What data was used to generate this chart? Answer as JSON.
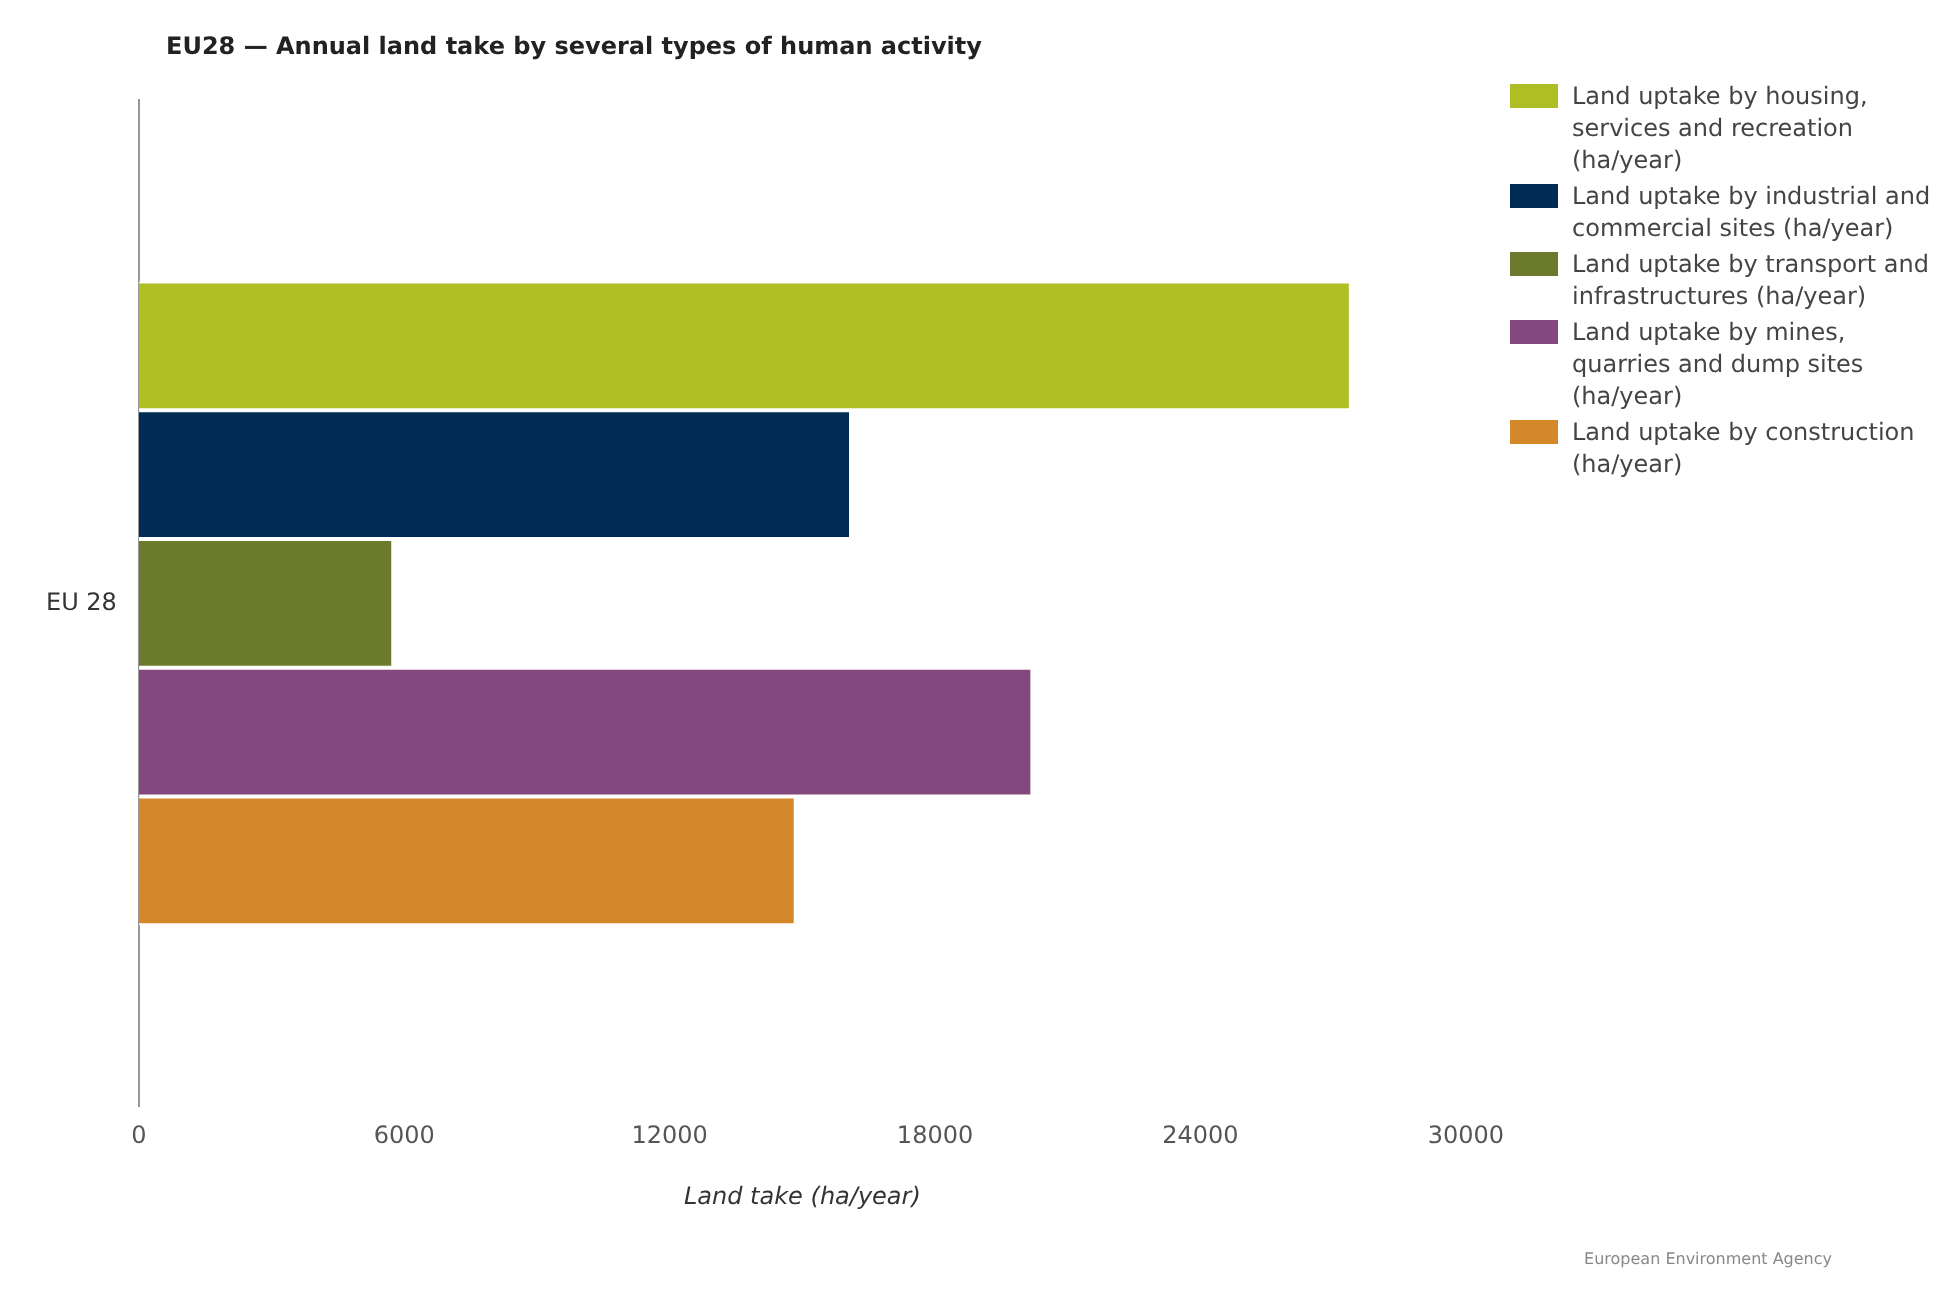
{
  "chart_data": {
    "type": "bar",
    "orientation": "horizontal",
    "title": "EU28 — Annual land take by several types of human activity",
    "xlabel": "Land take (ha/year)",
    "categories": [
      "EU 28"
    ],
    "series": [
      {
        "name": "Land uptake by housing, services and recreation (ha/year)",
        "color": "#afbe22",
        "values": [
          27400
        ]
      },
      {
        "name": "Land uptake by industrial and commercial sites (ha/year)",
        "color": "#002b55",
        "values": [
          16100
        ]
      },
      {
        "name": "Land uptake by transport and infrastructures (ha/year)",
        "color": "#6b7a2d",
        "values": [
          5750
        ]
      },
      {
        "name": "Land uptake by mines, quarries and dump sites (ha/year)",
        "color": "#83487e",
        "values": [
          20200
        ]
      },
      {
        "name": "Land uptake by construction (ha/year)",
        "color": "#d5882a",
        "values": [
          14850
        ]
      }
    ],
    "xlim": [
      0,
      30000
    ],
    "xticks": [
      0,
      6000,
      12000,
      18000,
      24000,
      30000
    ],
    "grid": false,
    "legend": "right",
    "annotations": [
      "European Environment Agency"
    ]
  }
}
